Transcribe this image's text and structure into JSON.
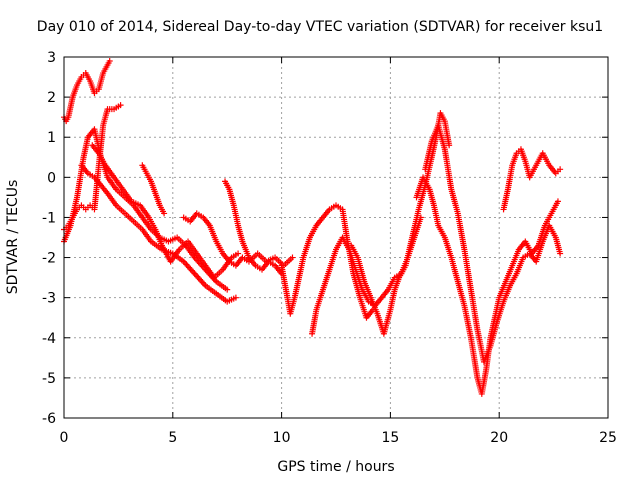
{
  "chart_data": {
    "type": "scatter",
    "title": "Day 010 of 2014, Sidereal Day-to-day VTEC variation (SDTVAR) for receiver ksu1",
    "xlabel": "GPS time / hours",
    "ylabel": "SDTVAR / TECUs",
    "xlim": [
      0,
      25
    ],
    "ylim": [
      -6,
      3
    ],
    "xticks": [
      0,
      5,
      10,
      15,
      20,
      25
    ],
    "yticks": [
      -6,
      -5,
      -4,
      -3,
      -2,
      -1,
      0,
      1,
      2,
      3
    ],
    "grid": true,
    "legend": "none",
    "marker": "+",
    "color": "#ff0000",
    "series": [
      {
        "x": [
          0.0,
          0.1,
          0.2,
          0.4,
          0.6,
          0.8,
          1.0,
          1.2,
          1.4,
          1.6,
          1.8,
          2.0,
          2.1
        ],
        "y": [
          1.5,
          1.4,
          1.5,
          2.0,
          2.3,
          2.5,
          2.6,
          2.4,
          2.1,
          2.2,
          2.6,
          2.8,
          2.9
        ]
      },
      {
        "x": [
          0.0,
          0.2,
          0.4,
          0.6,
          0.8,
          1.0,
          1.2,
          1.4,
          1.6,
          1.8,
          2.0,
          2.3,
          2.6
        ],
        "y": [
          -1.3,
          -1.2,
          -1.0,
          -0.8,
          -0.7,
          -0.8,
          -0.7,
          -0.8,
          0.3,
          1.3,
          1.7,
          1.7,
          1.8
        ]
      },
      {
        "x": [
          0.0,
          0.3,
          0.6,
          0.9,
          1.1,
          1.4,
          1.7,
          2.0,
          2.4,
          2.8,
          3.2,
          3.6,
          4.0,
          4.4,
          4.8,
          5.2,
          5.6,
          6.0,
          6.5,
          7.0,
          7.5
        ],
        "y": [
          -1.6,
          -1.2,
          -0.5,
          0.5,
          1.0,
          1.2,
          0.5,
          0.0,
          -0.3,
          -0.5,
          -0.7,
          -1.0,
          -1.3,
          -1.5,
          -1.6,
          -1.5,
          -1.7,
          -2.0,
          -2.3,
          -2.6,
          -2.8
        ]
      },
      {
        "x": [
          0.8,
          1.1,
          1.4,
          1.7,
          2.0,
          2.4,
          2.8,
          3.2,
          3.6,
          4.0,
          4.5,
          5.0,
          5.5,
          6.0,
          6.5,
          7.0,
          7.5,
          7.9
        ],
        "y": [
          0.3,
          0.1,
          0.0,
          -0.2,
          -0.4,
          -0.7,
          -0.9,
          -1.1,
          -1.3,
          -1.6,
          -1.8,
          -1.9,
          -2.1,
          -2.4,
          -2.7,
          -2.9,
          -3.1,
          -3.0
        ]
      },
      {
        "x": [
          1.3,
          1.6,
          1.9,
          2.3,
          2.7,
          3.1,
          3.5,
          3.9,
          4.2,
          4.5,
          4.9,
          5.3,
          5.7,
          6.1,
          6.5,
          6.9,
          7.3,
          7.7,
          8.0
        ],
        "y": [
          0.8,
          0.6,
          0.3,
          0.0,
          -0.3,
          -0.6,
          -0.7,
          -1.0,
          -1.3,
          -1.7,
          -2.1,
          -1.8,
          -1.6,
          -1.9,
          -2.2,
          -2.5,
          -2.3,
          -2.0,
          -1.9
        ]
      },
      {
        "x": [
          3.6,
          3.8,
          4.0,
          4.2,
          4.4,
          4.6
        ],
        "y": [
          0.3,
          0.1,
          -0.1,
          -0.4,
          -0.7,
          -0.9
        ]
      },
      {
        "x": [
          5.5,
          5.8,
          6.1,
          6.4,
          6.7,
          7.0,
          7.3,
          7.6,
          7.9,
          8.2,
          8.5,
          8.9,
          9.3,
          9.7,
          10.1,
          10.5
        ],
        "y": [
          -1.0,
          -1.1,
          -0.9,
          -1.0,
          -1.2,
          -1.6,
          -1.9,
          -2.1,
          -2.2,
          -2.0,
          -2.1,
          -1.9,
          -2.1,
          -2.0,
          -2.2,
          -2.0
        ]
      },
      {
        "x": [
          7.4,
          7.6,
          7.8,
          8.0,
          8.2,
          8.5,
          8.8,
          9.1,
          9.4,
          9.7,
          10.0
        ],
        "y": [
          -0.1,
          -0.3,
          -0.7,
          -1.2,
          -1.6,
          -2.0,
          -2.2,
          -2.3,
          -2.1,
          -2.2,
          -2.4
        ]
      },
      {
        "x": [
          10.0,
          10.2,
          10.4,
          10.6,
          10.8,
          11.0,
          11.3,
          11.6,
          11.9,
          12.2,
          12.5,
          12.8,
          13.0,
          13.3,
          13.6,
          13.9,
          14.2
        ],
        "y": [
          -2.2,
          -2.8,
          -3.4,
          -3.0,
          -2.5,
          -2.0,
          -1.5,
          -1.2,
          -1.0,
          -0.8,
          -0.7,
          -0.8,
          -1.5,
          -2.4,
          -3.0,
          -3.5,
          -3.3
        ]
      },
      {
        "x": [
          11.4,
          11.6,
          11.9,
          12.2,
          12.5,
          12.8,
          13.1,
          13.4,
          13.7,
          14.0,
          14.3,
          14.6,
          14.9,
          15.2,
          15.5,
          15.8,
          16.1,
          16.4
        ],
        "y": [
          -3.9,
          -3.3,
          -2.8,
          -2.3,
          -1.8,
          -1.5,
          -1.8,
          -2.3,
          -2.8,
          -3.1,
          -3.2,
          -3.0,
          -2.8,
          -2.5,
          -2.4,
          -2.0,
          -1.5,
          -1.0
        ]
      },
      {
        "x": [
          13.2,
          13.5,
          13.8,
          14.1,
          14.4,
          14.7,
          15.0,
          15.2,
          15.4,
          15.7,
          16.0,
          16.3,
          16.6,
          16.9,
          17.1,
          17.3,
          17.5,
          17.7
        ],
        "y": [
          -1.7,
          -2.0,
          -2.6,
          -3.0,
          -3.4,
          -3.9,
          -3.3,
          -2.8,
          -2.5,
          -2.2,
          -1.5,
          -0.8,
          -0.2,
          0.5,
          1.0,
          1.6,
          1.4,
          0.8
        ]
      },
      {
        "x": [
          16.2,
          16.5,
          16.8,
          17.0,
          17.2,
          17.5,
          17.8,
          18.1,
          18.4,
          18.7,
          19.0,
          19.2,
          19.4,
          19.6,
          19.8,
          20.0,
          20.3,
          20.6,
          20.9,
          21.2,
          21.5,
          21.8,
          22.1,
          22.4,
          22.7
        ],
        "y": [
          -0.5,
          0.0,
          -0.3,
          -0.7,
          -1.2,
          -1.5,
          -2.0,
          -2.6,
          -3.2,
          -4.0,
          -5.0,
          -5.4,
          -4.8,
          -4.0,
          -3.5,
          -3.0,
          -2.6,
          -2.2,
          -1.8,
          -1.6,
          -1.9,
          -1.7,
          -1.2,
          -0.9,
          -0.6
        ]
      },
      {
        "x": [
          16.6,
          16.9,
          17.2,
          17.5,
          17.8,
          18.1,
          18.4,
          18.7,
          19.0,
          19.3,
          19.6,
          19.9,
          20.2,
          20.5,
          20.8,
          21.1,
          21.4,
          21.7,
          22.0,
          22.3,
          22.6,
          22.8
        ],
        "y": [
          0.2,
          0.9,
          1.3,
          0.7,
          -0.3,
          -0.9,
          -1.8,
          -2.8,
          -3.8,
          -4.6,
          -4.2,
          -3.6,
          -3.1,
          -2.7,
          -2.4,
          -2.0,
          -1.9,
          -2.1,
          -1.6,
          -1.2,
          -1.5,
          -1.9
        ]
      },
      {
        "x": [
          20.2,
          20.4,
          20.6,
          20.8,
          21.0,
          21.2,
          21.4,
          21.7,
          22.0,
          22.3,
          22.6,
          22.8
        ],
        "y": [
          -0.8,
          -0.3,
          0.3,
          0.6,
          0.7,
          0.4,
          0.0,
          0.3,
          0.6,
          0.3,
          0.1,
          0.2
        ]
      }
    ]
  }
}
